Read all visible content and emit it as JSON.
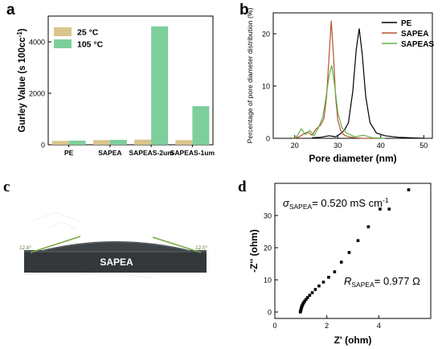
{
  "panels": {
    "a": "a",
    "b": "b",
    "c": "c",
    "d": "d"
  },
  "chart_data": [
    {
      "panel": "a",
      "type": "bar",
      "categories": [
        "PE",
        "SAPEA",
        "SAPEAS-2um",
        "SAPEAS-1um"
      ],
      "series": [
        {
          "name": "25 °C",
          "values": [
            150,
            180,
            200,
            180
          ],
          "color": "#d9c48c"
        },
        {
          "name": "105 °C",
          "values": [
            160,
            190,
            4600,
            1500
          ],
          "color": "#7dcf9b"
        }
      ],
      "ylabel": "Gurley Value (s 100cc",
      "ylabel_sup": "-1",
      "ylabel_close": ")",
      "ylim": [
        0,
        5000
      ],
      "yticks": [
        0,
        2000,
        4000
      ],
      "legend": "top-left"
    },
    {
      "panel": "b",
      "type": "line",
      "xlabel": "Pore diameter (nm)",
      "ylabel": "Percentage of pore diameter distribution (%)",
      "xlim": [
        15,
        52
      ],
      "ylim": [
        0,
        24
      ],
      "xticks": [
        20,
        30,
        40,
        50
      ],
      "yticks": [
        0,
        10,
        20
      ],
      "legend": "top-right",
      "series": [
        {
          "name": "PE",
          "color": "#000000",
          "x": [
            24,
            26,
            28,
            29.5,
            30.5,
            31.5,
            32.5,
            33.5,
            34.3,
            35,
            35.7,
            36.5,
            37.5,
            39,
            41,
            44,
            47,
            50
          ],
          "y": [
            0.1,
            0.2,
            0.5,
            0.3,
            0.8,
            1.5,
            3,
            9,
            17,
            21,
            16,
            8,
            3,
            1,
            0.5,
            0.2,
            0.1,
            0
          ]
        },
        {
          "name": "SAPEA",
          "color": "#b5532e",
          "x": [
            20,
            21,
            22,
            23,
            24,
            25,
            26,
            26.8,
            27.4,
            28,
            28.5,
            29,
            29.5,
            30,
            30.7,
            31.5,
            32.5,
            34,
            36,
            40
          ],
          "y": [
            0,
            0.3,
            0.8,
            1.2,
            0.6,
            1.8,
            2.5,
            3.8,
            8,
            16,
            22.5,
            16,
            8,
            3.5,
            1.5,
            0.6,
            0.3,
            0.1,
            0,
            0
          ]
        },
        {
          "name": "SAPEAS",
          "color": "#62b34a",
          "x": [
            19.5,
            20.5,
            21.5,
            22.5,
            23.5,
            24.5,
            25.5,
            26.5,
            27.3,
            28,
            28.6,
            29.3,
            30,
            31,
            32,
            34,
            36,
            38,
            41
          ],
          "y": [
            0,
            0.4,
            1.8,
            0.7,
            1.5,
            0.5,
            2,
            4,
            8,
            12,
            14,
            10,
            5,
            2,
            1,
            0.3,
            0.6,
            0.1,
            0
          ]
        }
      ]
    },
    {
      "panel": "c",
      "type": "image",
      "sample_label": "SAPEA",
      "angle_left": "12.8°",
      "angle_right": "12.0°"
    },
    {
      "panel": "d",
      "type": "scatter",
      "xlabel": "Z' (ohm)",
      "ylabel": "-Z'' (ohm)",
      "xlim": [
        0,
        6
      ],
      "ylim": [
        -2,
        40
      ],
      "xticks": [
        0,
        2,
        4
      ],
      "yticks": [
        0,
        10,
        20,
        30
      ],
      "annotations": {
        "sigma_symbol": "σ",
        "sigma_sub": "SAPEA",
        "sigma_value": "= 0.520 mS cm",
        "sigma_sup": "-1",
        "r_symbol": "R",
        "r_sub": "SAPEA",
        "r_value": "= 0.977 Ω"
      },
      "x": [
        0.98,
        0.99,
        1.0,
        1.01,
        1.02,
        1.03,
        1.04,
        1.06,
        1.08,
        1.11,
        1.15,
        1.2,
        1.26,
        1.34,
        1.44,
        1.56,
        1.7,
        1.87,
        2.07,
        2.3,
        2.56,
        2.86,
        3.2,
        3.6,
        4.05,
        4.4,
        5.15
      ],
      "y": [
        0.0,
        0.3,
        0.6,
        0.9,
        1.2,
        1.5,
        1.8,
        2.1,
        2.5,
        2.9,
        3.4,
        3.9,
        4.5,
        5.2,
        6.0,
        7.0,
        8.1,
        9.3,
        10.8,
        12.5,
        15.5,
        18.5,
        22.2,
        26.5,
        32.0,
        32.0,
        38.0
      ],
      "color": "#000000"
    }
  ]
}
